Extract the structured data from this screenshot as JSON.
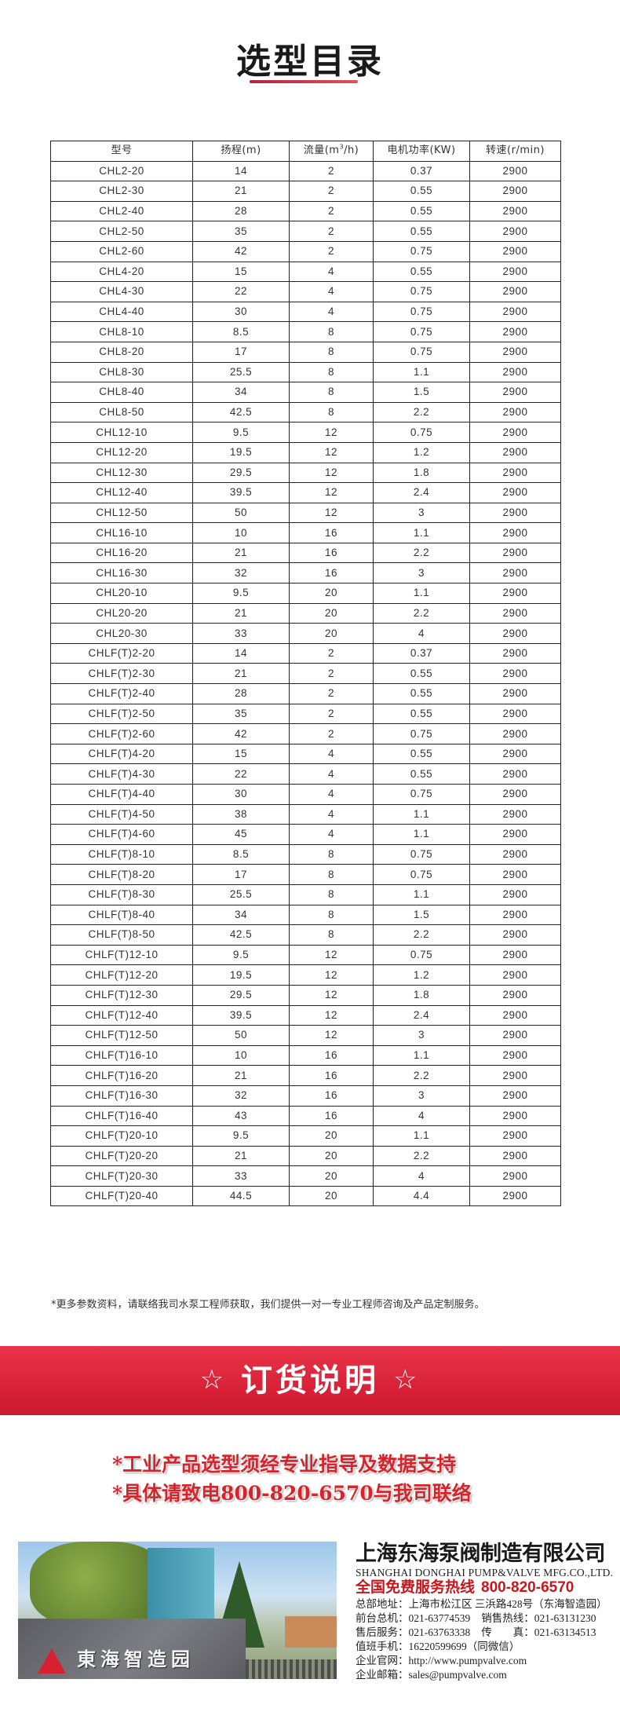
{
  "header": {
    "title": "选型目录"
  },
  "table": {
    "columns": [
      "型号",
      "扬程(m)",
      "流量(m",
      "3",
      "/h)",
      "电机功率(KW)",
      "转速(r/min)"
    ],
    "rows": [
      [
        "CHL2-20",
        "14",
        "2",
        "0.37",
        "2900"
      ],
      [
        "CHL2-30",
        "21",
        "2",
        "0.55",
        "2900"
      ],
      [
        "CHL2-40",
        "28",
        "2",
        "0.55",
        "2900"
      ],
      [
        "CHL2-50",
        "35",
        "2",
        "0.55",
        "2900"
      ],
      [
        "CHL2-60",
        "42",
        "2",
        "0.75",
        "2900"
      ],
      [
        "CHL4-20",
        "15",
        "4",
        "0.55",
        "2900"
      ],
      [
        "CHL4-30",
        "22",
        "4",
        "0.75",
        "2900"
      ],
      [
        "CHL4-40",
        "30",
        "4",
        "0.75",
        "2900"
      ],
      [
        "CHL8-10",
        "8.5",
        "8",
        "0.75",
        "2900"
      ],
      [
        "CHL8-20",
        "17",
        "8",
        "0.75",
        "2900"
      ],
      [
        "CHL8-30",
        "25.5",
        "8",
        "1.1",
        "2900"
      ],
      [
        "CHL8-40",
        "34",
        "8",
        "1.5",
        "2900"
      ],
      [
        "CHL8-50",
        "42.5",
        "8",
        "2.2",
        "2900"
      ],
      [
        "CHL12-10",
        "9.5",
        "12",
        "0.75",
        "2900"
      ],
      [
        "CHL12-20",
        "19.5",
        "12",
        "1.2",
        "2900"
      ],
      [
        "CHL12-30",
        "29.5",
        "12",
        "1.8",
        "2900"
      ],
      [
        "CHL12-40",
        "39.5",
        "12",
        "2.4",
        "2900"
      ],
      [
        "CHL12-50",
        "50",
        "12",
        "3",
        "2900"
      ],
      [
        "CHL16-10",
        "10",
        "16",
        "1.1",
        "2900"
      ],
      [
        "CHL16-20",
        "21",
        "16",
        "2.2",
        "2900"
      ],
      [
        "CHL16-30",
        "32",
        "16",
        "3",
        "2900"
      ],
      [
        "CHL20-10",
        "9.5",
        "20",
        "1.1",
        "2900"
      ],
      [
        "CHL20-20",
        "21",
        "20",
        "2.2",
        "2900"
      ],
      [
        "CHL20-30",
        "33",
        "20",
        "4",
        "2900"
      ],
      [
        "CHLF(T)2-20",
        "14",
        "2",
        "0.37",
        "2900"
      ],
      [
        "CHLF(T)2-30",
        "21",
        "2",
        "0.55",
        "2900"
      ],
      [
        "CHLF(T)2-40",
        "28",
        "2",
        "0.55",
        "2900"
      ],
      [
        "CHLF(T)2-50",
        "35",
        "2",
        "0.55",
        "2900"
      ],
      [
        "CHLF(T)2-60",
        "42",
        "2",
        "0.75",
        "2900"
      ],
      [
        "CHLF(T)4-20",
        "15",
        "4",
        "0.55",
        "2900"
      ],
      [
        "CHLF(T)4-30",
        "22",
        "4",
        "0.55",
        "2900"
      ],
      [
        "CHLF(T)4-40",
        "30",
        "4",
        "0.75",
        "2900"
      ],
      [
        "CHLF(T)4-50",
        "38",
        "4",
        "1.1",
        "2900"
      ],
      [
        "CHLF(T)4-60",
        "45",
        "4",
        "1.1",
        "2900"
      ],
      [
        "CHLF(T)8-10",
        "8.5",
        "8",
        "0.75",
        "2900"
      ],
      [
        "CHLF(T)8-20",
        "17",
        "8",
        "0.75",
        "2900"
      ],
      [
        "CHLF(T)8-30",
        "25.5",
        "8",
        "1.1",
        "2900"
      ],
      [
        "CHLF(T)8-40",
        "34",
        "8",
        "1.5",
        "2900"
      ],
      [
        "CHLF(T)8-50",
        "42.5",
        "8",
        "2.2",
        "2900"
      ],
      [
        "CHLF(T)12-10",
        "9.5",
        "12",
        "0.75",
        "2900"
      ],
      [
        "CHLF(T)12-20",
        "19.5",
        "12",
        "1.2",
        "2900"
      ],
      [
        "CHLF(T)12-30",
        "29.5",
        "12",
        "1.8",
        "2900"
      ],
      [
        "CHLF(T)12-40",
        "39.5",
        "12",
        "2.4",
        "2900"
      ],
      [
        "CHLF(T)12-50",
        "50",
        "12",
        "3",
        "2900"
      ],
      [
        "CHLF(T)16-10",
        "10",
        "16",
        "1.1",
        "2900"
      ],
      [
        "CHLF(T)16-20",
        "21",
        "16",
        "2.2",
        "2900"
      ],
      [
        "CHLF(T)16-30",
        "32",
        "16",
        "3",
        "2900"
      ],
      [
        "CHLF(T)16-40",
        "43",
        "16",
        "4",
        "2900"
      ],
      [
        "CHLF(T)20-10",
        "9.5",
        "20",
        "1.1",
        "2900"
      ],
      [
        "CHLF(T)20-20",
        "21",
        "20",
        "2.2",
        "2900"
      ],
      [
        "CHLF(T)20-30",
        "33",
        "20",
        "4",
        "2900"
      ],
      [
        "CHLF(T)20-40",
        "44.5",
        "20",
        "4.4",
        "2900"
      ]
    ]
  },
  "note": "*更多参数资料，请联络我司水泵工程师获取，我们提供一对一专业工程师咨询及产品定制服务。",
  "banner": {
    "star_icon": "☆",
    "title": "订货说明"
  },
  "slogans": [
    "*工业产品选型须经专业指导及数据支持",
    "*具体请致电800-820-6570与我司联络"
  ],
  "photo": {
    "sign_text": "東海智造园"
  },
  "company": {
    "name": "上海东海泵阀制造有限公司",
    "name_en": "SHANGHAI DONGHAI PUMP&VALVE MFG.CO.,LTD.",
    "hotline_label": "全国免费服务热线",
    "hotline": "800-820-6570",
    "address_label": "总部地址：",
    "address": "上海市松江区 三浜路428号（东海智造园）",
    "front_label": "前台总机：",
    "front": "021-63774539",
    "sales_label": "销售热线：",
    "sales": "021-63131230",
    "service_label": "售后服务：",
    "service": "021-63763338",
    "fax_label": "传　　真：",
    "fax": "021-63134513",
    "mobile_label": "值班手机：",
    "mobile": "16220599699（同微信）",
    "web_label": "企业官网：",
    "web": "http://www.pumpvalve.com",
    "email_label": "企业邮箱：",
    "email": "sales@pumpvalve.com"
  },
  "colors": {
    "accent": "#d8232a",
    "banner": "#e0283e"
  }
}
